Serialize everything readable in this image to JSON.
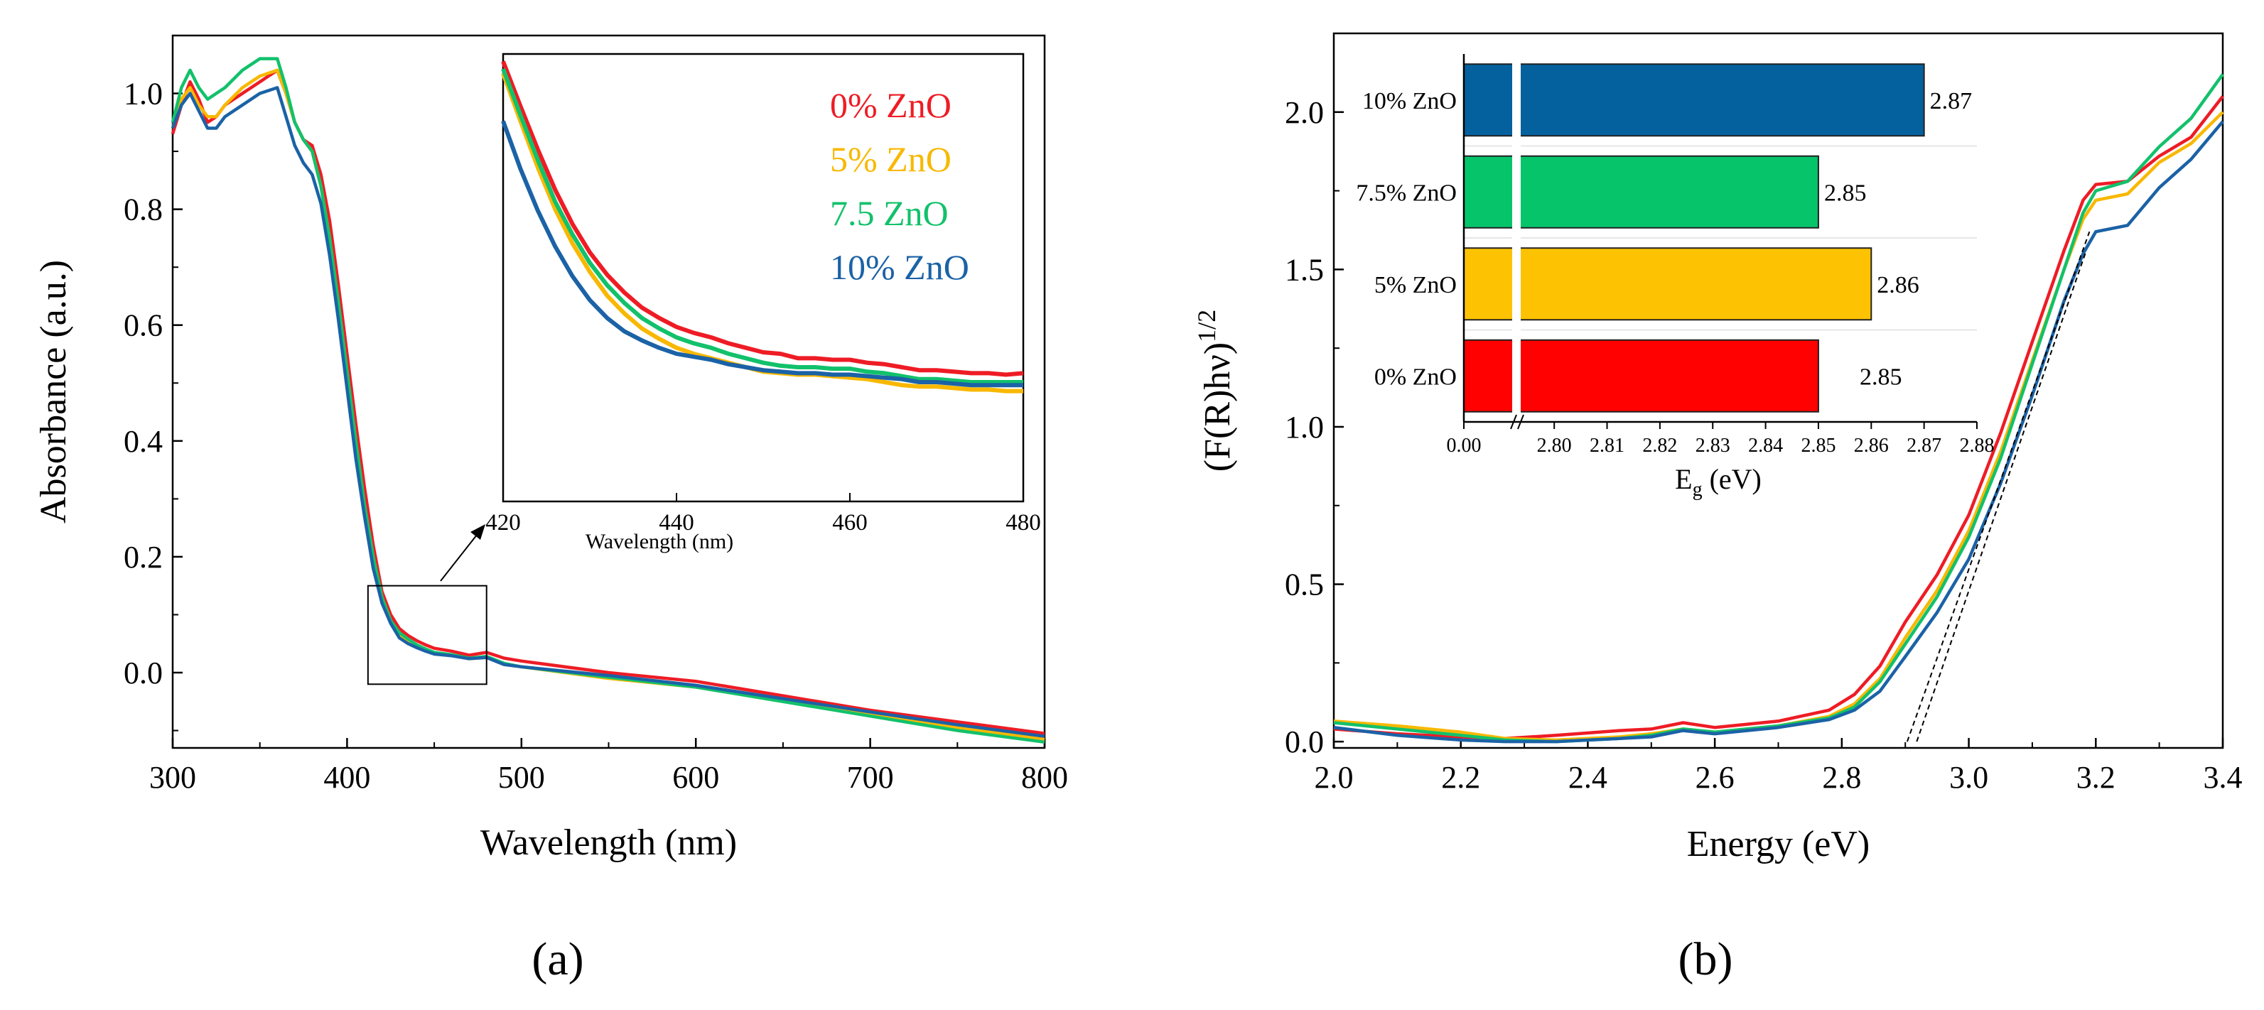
{
  "panel_labels": {
    "a": "(a)",
    "b": "(b)"
  },
  "chart_data": [
    {
      "type": "line",
      "panel": "a",
      "xlabel": "Wavelength (nm)",
      "ylabel": "Absorbance (a.u.)",
      "xlim": [
        300,
        800
      ],
      "ylim": [
        -0.13,
        1.1
      ],
      "xticks": [
        300,
        400,
        500,
        600,
        700,
        800
      ],
      "yticks": [
        0.0,
        0.2,
        0.4,
        0.6,
        0.8,
        1.0
      ],
      "xticklabels": [
        "300",
        "400",
        "500",
        "600",
        "700",
        "800"
      ],
      "yticklabels": [
        "0.0",
        "0.2",
        "0.4",
        "0.6",
        "0.8",
        "1.0"
      ],
      "series": [
        {
          "name": "0% ZnO",
          "color": "#ee1c25",
          "x": [
            300,
            305,
            310,
            315,
            320,
            325,
            330,
            340,
            350,
            360,
            365,
            370,
            375,
            380,
            385,
            390,
            395,
            400,
            405,
            410,
            415,
            420,
            425,
            430,
            435,
            440,
            445,
            450,
            460,
            470,
            480,
            490,
            500,
            550,
            600,
            650,
            700,
            750,
            800
          ],
          "y": [
            0.93,
            0.98,
            1.02,
            0.99,
            0.95,
            0.96,
            0.98,
            1.0,
            1.02,
            1.04,
            1.0,
            0.95,
            0.92,
            0.91,
            0.86,
            0.78,
            0.67,
            0.55,
            0.43,
            0.32,
            0.22,
            0.14,
            0.1,
            0.076,
            0.064,
            0.055,
            0.048,
            0.042,
            0.037,
            0.03,
            0.035,
            0.025,
            0.02,
            0.0,
            -0.015,
            -0.04,
            -0.065,
            -0.085,
            -0.105
          ]
        },
        {
          "name": "5% ZnO",
          "color": "#f8b800",
          "x": [
            300,
            305,
            310,
            315,
            320,
            325,
            330,
            340,
            350,
            360,
            365,
            370,
            375,
            380,
            385,
            390,
            395,
            400,
            405,
            410,
            415,
            420,
            425,
            430,
            435,
            440,
            445,
            450,
            460,
            470,
            480,
            490,
            500,
            550,
            600,
            650,
            700,
            750,
            800
          ],
          "y": [
            0.94,
            0.99,
            1.01,
            0.98,
            0.96,
            0.96,
            0.98,
            1.01,
            1.03,
            1.04,
            1.0,
            0.95,
            0.92,
            0.9,
            0.84,
            0.75,
            0.64,
            0.52,
            0.4,
            0.29,
            0.2,
            0.13,
            0.09,
            0.067,
            0.055,
            0.046,
            0.039,
            0.034,
            0.03,
            0.024,
            0.027,
            0.015,
            0.01,
            -0.01,
            -0.025,
            -0.048,
            -0.072,
            -0.095,
            -0.115
          ]
        },
        {
          "name": "7.5 ZnO",
          "color": "#12c16b",
          "x": [
            300,
            305,
            310,
            315,
            320,
            325,
            330,
            340,
            350,
            360,
            365,
            370,
            375,
            380,
            385,
            390,
            395,
            400,
            405,
            410,
            415,
            420,
            425,
            430,
            435,
            440,
            445,
            450,
            460,
            470,
            480,
            490,
            500,
            550,
            600,
            650,
            700,
            750,
            800
          ],
          "y": [
            0.95,
            1.01,
            1.04,
            1.01,
            0.99,
            1.0,
            1.01,
            1.04,
            1.06,
            1.06,
            1.01,
            0.95,
            0.92,
            0.9,
            0.84,
            0.75,
            0.64,
            0.52,
            0.4,
            0.29,
            0.2,
            0.13,
            0.09,
            0.069,
            0.058,
            0.048,
            0.041,
            0.035,
            0.031,
            0.025,
            0.028,
            0.016,
            0.01,
            -0.008,
            -0.025,
            -0.05,
            -0.075,
            -0.1,
            -0.12
          ]
        },
        {
          "name": "10% ZnO",
          "color": "#1b62a6",
          "x": [
            300,
            305,
            310,
            315,
            320,
            325,
            330,
            340,
            350,
            360,
            365,
            370,
            375,
            380,
            385,
            390,
            395,
            400,
            405,
            410,
            415,
            420,
            425,
            430,
            435,
            440,
            445,
            450,
            460,
            470,
            480,
            490,
            500,
            550,
            600,
            650,
            700,
            750,
            800
          ],
          "y": [
            0.94,
            0.98,
            1.0,
            0.97,
            0.94,
            0.94,
            0.96,
            0.98,
            1.0,
            1.01,
            0.96,
            0.91,
            0.88,
            0.86,
            0.81,
            0.72,
            0.61,
            0.49,
            0.37,
            0.27,
            0.18,
            0.12,
            0.085,
            0.06,
            0.05,
            0.043,
            0.037,
            0.032,
            0.029,
            0.024,
            0.026,
            0.014,
            0.01,
            -0.005,
            -0.022,
            -0.045,
            -0.068,
            -0.09,
            -0.11
          ]
        }
      ]
    },
    {
      "type": "line",
      "panel": "a-inset",
      "xlabel": "Wavelength (nm)",
      "xlim": [
        420,
        480
      ],
      "ylim": [
        0.0,
        0.3
      ],
      "xticks": [
        420,
        440,
        460,
        480
      ],
      "xticklabels": [
        "420",
        "440",
        "460",
        "480"
      ],
      "legend": [
        "0% ZnO",
        "5% ZnO",
        "7.5 ZnO",
        "10% ZnO"
      ],
      "series": [
        {
          "name": "0% ZnO",
          "color": "#ee1c25",
          "x": [
            420,
            422,
            424,
            426,
            428,
            430,
            432,
            434,
            436,
            438,
            440,
            442,
            444,
            446,
            448,
            450,
            452,
            454,
            456,
            458,
            460,
            462,
            464,
            466,
            468,
            470,
            472,
            474,
            476,
            478,
            480
          ],
          "y": [
            0.295,
            0.265,
            0.236,
            0.209,
            0.186,
            0.167,
            0.152,
            0.14,
            0.13,
            0.123,
            0.117,
            0.113,
            0.11,
            0.106,
            0.103,
            0.1,
            0.099,
            0.096,
            0.096,
            0.095,
            0.095,
            0.093,
            0.092,
            0.09,
            0.088,
            0.088,
            0.087,
            0.086,
            0.086,
            0.085,
            0.086
          ]
        },
        {
          "name": "5% ZnO",
          "color": "#f8b800",
          "x": [
            420,
            422,
            424,
            426,
            428,
            430,
            432,
            434,
            436,
            438,
            440,
            442,
            444,
            446,
            448,
            450,
            452,
            454,
            456,
            458,
            460,
            462,
            464,
            466,
            468,
            470,
            472,
            474,
            476,
            478,
            480
          ],
          "y": [
            0.287,
            0.255,
            0.224,
            0.196,
            0.173,
            0.154,
            0.138,
            0.126,
            0.116,
            0.109,
            0.103,
            0.099,
            0.096,
            0.093,
            0.09,
            0.087,
            0.086,
            0.085,
            0.085,
            0.084,
            0.083,
            0.082,
            0.08,
            0.078,
            0.077,
            0.077,
            0.076,
            0.075,
            0.075,
            0.074,
            0.074
          ]
        },
        {
          "name": "7.5 ZnO",
          "color": "#12c16b",
          "x": [
            420,
            422,
            424,
            426,
            428,
            430,
            432,
            434,
            436,
            438,
            440,
            442,
            444,
            446,
            448,
            450,
            452,
            454,
            456,
            458,
            460,
            462,
            464,
            466,
            468,
            470,
            472,
            474,
            476,
            478,
            480
          ],
          "y": [
            0.29,
            0.259,
            0.229,
            0.201,
            0.179,
            0.16,
            0.145,
            0.133,
            0.123,
            0.116,
            0.11,
            0.106,
            0.103,
            0.099,
            0.096,
            0.093,
            0.091,
            0.09,
            0.09,
            0.089,
            0.089,
            0.087,
            0.086,
            0.084,
            0.082,
            0.082,
            0.081,
            0.08,
            0.08,
            0.08,
            0.08
          ]
        },
        {
          "name": "10% ZnO",
          "color": "#1b62a6",
          "x": [
            420,
            422,
            424,
            426,
            428,
            430,
            432,
            434,
            436,
            438,
            440,
            442,
            444,
            446,
            448,
            450,
            452,
            454,
            456,
            458,
            460,
            462,
            464,
            466,
            468,
            470,
            472,
            474,
            476,
            478,
            480
          ],
          "y": [
            0.255,
            0.223,
            0.195,
            0.171,
            0.151,
            0.135,
            0.123,
            0.114,
            0.108,
            0.103,
            0.099,
            0.097,
            0.095,
            0.092,
            0.09,
            0.088,
            0.087,
            0.086,
            0.086,
            0.085,
            0.085,
            0.084,
            0.083,
            0.082,
            0.08,
            0.08,
            0.079,
            0.078,
            0.078,
            0.078,
            0.078
          ]
        }
      ]
    },
    {
      "type": "line",
      "panel": "b",
      "xlabel": "Energy (eV)",
      "ylabel": "(F(R)hν)",
      "ylabel_superscript": "1/2",
      "xlim": [
        2.0,
        3.4
      ],
      "ylim": [
        -0.02,
        2.25
      ],
      "xticks": [
        2.0,
        2.2,
        2.4,
        2.6,
        2.8,
        3.0,
        3.2,
        3.4
      ],
      "yticks": [
        0.0,
        0.5,
        1.0,
        1.5,
        2.0
      ],
      "xticklabels": [
        "2.0",
        "2.2",
        "2.4",
        "2.6",
        "2.8",
        "3.0",
        "3.2",
        "3.4"
      ],
      "yticklabels": [
        "0.0",
        "0.5",
        "1.0",
        "1.5",
        "2.0"
      ],
      "series": [
        {
          "name": "0% ZnO",
          "color": "#ee1c25",
          "x": [
            2.0,
            2.1,
            2.2,
            2.27,
            2.35,
            2.45,
            2.5,
            2.55,
            2.6,
            2.7,
            2.78,
            2.82,
            2.86,
            2.9,
            2.95,
            3.0,
            3.05,
            3.1,
            3.15,
            3.18,
            3.2,
            3.25,
            3.3,
            3.35,
            3.4
          ],
          "y": [
            0.04,
            0.025,
            0.015,
            0.01,
            0.02,
            0.035,
            0.04,
            0.06,
            0.045,
            0.065,
            0.1,
            0.15,
            0.24,
            0.38,
            0.53,
            0.72,
            0.98,
            1.27,
            1.56,
            1.72,
            1.77,
            1.78,
            1.86,
            1.92,
            2.05
          ]
        },
        {
          "name": "5% ZnO",
          "color": "#f8b800",
          "x": [
            2.0,
            2.1,
            2.2,
            2.27,
            2.35,
            2.45,
            2.5,
            2.55,
            2.6,
            2.7,
            2.78,
            2.82,
            2.86,
            2.9,
            2.95,
            3.0,
            3.05,
            3.1,
            3.15,
            3.18,
            3.2,
            3.25,
            3.3,
            3.35,
            3.4
          ],
          "y": [
            0.065,
            0.05,
            0.03,
            0.01,
            0.005,
            0.015,
            0.025,
            0.04,
            0.03,
            0.05,
            0.08,
            0.12,
            0.2,
            0.33,
            0.48,
            0.67,
            0.92,
            1.21,
            1.5,
            1.66,
            1.72,
            1.74,
            1.84,
            1.9,
            2.0
          ]
        },
        {
          "name": "7.5% ZnO",
          "color": "#12c16b",
          "x": [
            2.0,
            2.1,
            2.2,
            2.27,
            2.35,
            2.45,
            2.5,
            2.55,
            2.6,
            2.7,
            2.78,
            2.82,
            2.86,
            2.9,
            2.95,
            3.0,
            3.05,
            3.1,
            3.15,
            3.18,
            3.2,
            3.25,
            3.3,
            3.35,
            3.4
          ],
          "y": [
            0.06,
            0.04,
            0.02,
            0.005,
            0.0,
            0.01,
            0.02,
            0.04,
            0.03,
            0.05,
            0.075,
            0.11,
            0.19,
            0.31,
            0.46,
            0.65,
            0.9,
            1.2,
            1.5,
            1.68,
            1.75,
            1.78,
            1.89,
            1.98,
            2.12
          ]
        },
        {
          "name": "10% ZnO",
          "color": "#1b62a6",
          "x": [
            2.0,
            2.1,
            2.2,
            2.27,
            2.35,
            2.45,
            2.5,
            2.55,
            2.6,
            2.7,
            2.78,
            2.82,
            2.86,
            2.9,
            2.95,
            3.0,
            3.05,
            3.1,
            3.15,
            3.18,
            3.2,
            3.25,
            3.3,
            3.35,
            3.4
          ],
          "y": [
            0.045,
            0.02,
            0.005,
            0.0,
            0.0,
            0.01,
            0.015,
            0.035,
            0.025,
            0.045,
            0.07,
            0.1,
            0.16,
            0.27,
            0.41,
            0.58,
            0.82,
            1.1,
            1.4,
            1.55,
            1.62,
            1.64,
            1.76,
            1.85,
            1.97
          ]
        }
      ],
      "tangent_lines": [
        {
          "x": [
            2.903,
            3.19
          ],
          "y": [
            0.0,
            1.62
          ]
        },
        {
          "x": [
            2.918,
            3.185
          ],
          "y": [
            0.0,
            1.56
          ]
        }
      ]
    },
    {
      "type": "bar",
      "orientation": "horizontal",
      "panel": "b-inset",
      "xlabel": "E",
      "xlabel_subscript": "g",
      "xlabel_unit": " (eV)",
      "axis_break": true,
      "xticklabels": [
        "0.00",
        "2.80",
        "2.81",
        "2.82",
        "2.83",
        "2.84",
        "2.85",
        "2.86",
        "2.87",
        "2.88"
      ],
      "xlim_after_break": [
        2.795,
        2.88
      ],
      "categories": [
        "10% ZnO",
        "7.5% ZnO",
        "5% ZnO",
        "0% ZnO"
      ],
      "values": [
        2.87,
        2.85,
        2.86,
        2.85
      ],
      "value_labels": [
        "2.87",
        "2.85",
        "2.86",
        "2.85"
      ],
      "colors": [
        "#04619e",
        "#05c46a",
        "#fdc302",
        "#fe0100"
      ]
    }
  ]
}
